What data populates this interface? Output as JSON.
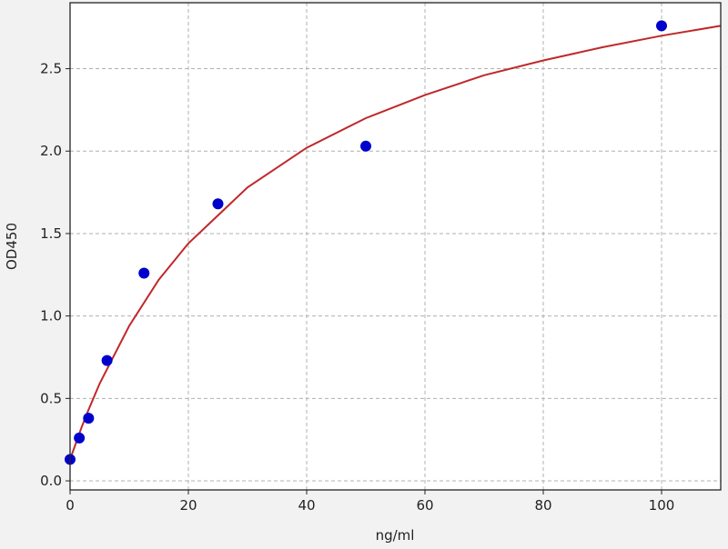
{
  "chart_data": {
    "type": "scatter",
    "title": "",
    "xlabel": "ng/ml",
    "ylabel": "OD450",
    "xlim": [
      0,
      110
    ],
    "ylim": [
      -0.055,
      2.9
    ],
    "xticks": [
      0,
      20,
      40,
      60,
      80,
      100
    ],
    "xtick_labels": [
      "0",
      "20",
      "40",
      "60",
      "80",
      "100"
    ],
    "yticks": [
      0.0,
      0.5,
      1.0,
      1.5,
      2.0,
      2.5
    ],
    "ytick_labels": [
      "0.0",
      "0.5",
      "1.0",
      "1.5",
      "2.0",
      "2.5"
    ],
    "grid": true,
    "points": {
      "color": "#0000cc",
      "x": [
        0,
        1.56,
        3.125,
        6.25,
        12.5,
        25,
        50,
        100
      ],
      "y": [
        0.13,
        0.26,
        0.38,
        0.73,
        1.26,
        1.68,
        2.03,
        2.76
      ]
    },
    "fit_curve": {
      "color": "#c0282a",
      "x": [
        0,
        1,
        2,
        3,
        5,
        10,
        15,
        20,
        30,
        40,
        50,
        60,
        70,
        80,
        90,
        100,
        110
      ],
      "y": [
        0.13,
        0.23,
        0.33,
        0.42,
        0.59,
        0.94,
        1.22,
        1.44,
        1.78,
        2.02,
        2.2,
        2.34,
        2.46,
        2.55,
        2.63,
        2.7,
        2.76
      ]
    }
  }
}
